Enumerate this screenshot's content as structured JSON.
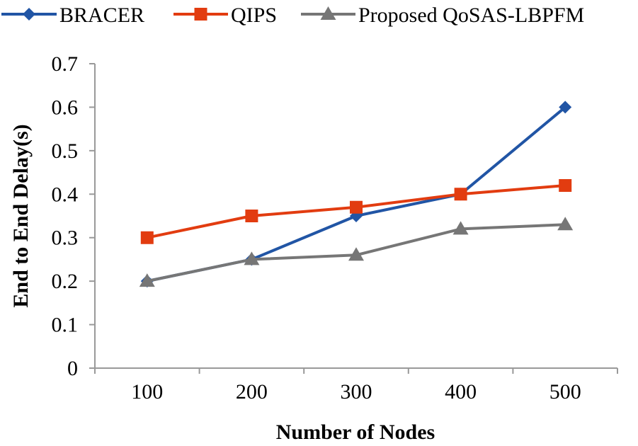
{
  "chart_data": {
    "type": "line",
    "title": "",
    "xlabel": "Number of Nodes",
    "ylabel": "End to End Delay(s)",
    "categories": [
      "100",
      "200",
      "300",
      "400",
      "500"
    ],
    "ylim": [
      0,
      0.7
    ],
    "yticks": [
      "0",
      "0.1",
      "0.2",
      "0.3",
      "0.4",
      "0.5",
      "0.6",
      "0.7"
    ],
    "grid": false,
    "legend_position": "top",
    "series": [
      {
        "name": "BRACER",
        "color": "#2155a5",
        "marker": "diamond",
        "values": [
          0.2,
          0.25,
          0.35,
          0.4,
          0.6
        ]
      },
      {
        "name": "QIPS",
        "color": "#e23c10",
        "marker": "square",
        "values": [
          0.3,
          0.35,
          0.37,
          0.4,
          0.42
        ]
      },
      {
        "name": "Proposed QoSAS-LBPFM",
        "color": "#767676",
        "marker": "triangle",
        "values": [
          0.2,
          0.25,
          0.26,
          0.32,
          0.33
        ]
      }
    ]
  }
}
